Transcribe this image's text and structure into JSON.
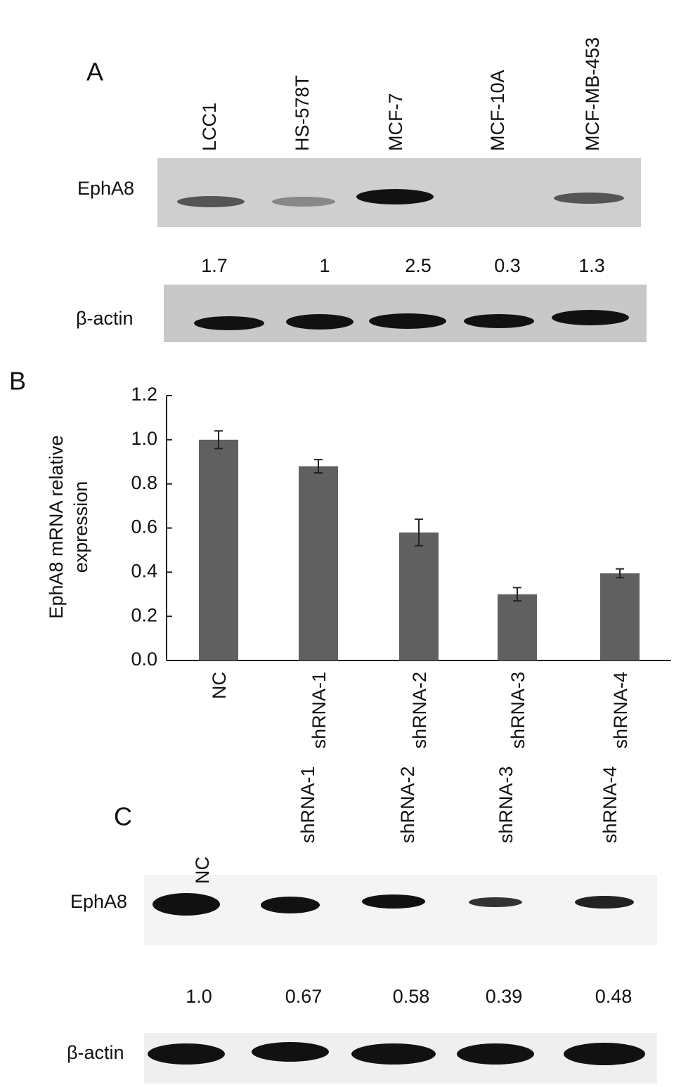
{
  "panel_a": {
    "label": "A",
    "lanes": [
      "LCC1",
      "HS-578T",
      "MCF-7",
      "MCF-10A",
      "MCF-MB-453"
    ],
    "protein": "EphA8",
    "control": "β-actin",
    "ratios": [
      "1.7",
      "1",
      "2.5",
      "0.3",
      "1.3"
    ]
  },
  "chart_data": {
    "type": "bar",
    "panel_label": "B",
    "ylabel": [
      "EphA8 mRNA relative",
      "expression"
    ],
    "categories": [
      "NC",
      "shRNA-1",
      "shRNA-2",
      "shRNA-3",
      "shRNA-4"
    ],
    "values": [
      1.0,
      0.88,
      0.58,
      0.3,
      0.395
    ],
    "errors": [
      0.04,
      0.03,
      0.06,
      0.03,
      0.02
    ],
    "color": "#606060",
    "ylim": [
      0,
      1.2
    ],
    "yticks": [
      {
        "value": 0,
        "label": "0.0"
      },
      0.2,
      0.4,
      0.6,
      0.8,
      {
        "value": 1,
        "label": "1.0"
      },
      1.2
    ]
  },
  "panel_c": {
    "label": "C",
    "lanes": [
      "NC",
      "shRNA-1",
      "shRNA-2",
      "shRNA-3",
      "shRNA-4"
    ],
    "protein": "EphA8",
    "control": "β-actin",
    "ratios": [
      "1.0",
      "0.67",
      "0.58",
      "0.39",
      "0.48"
    ]
  }
}
